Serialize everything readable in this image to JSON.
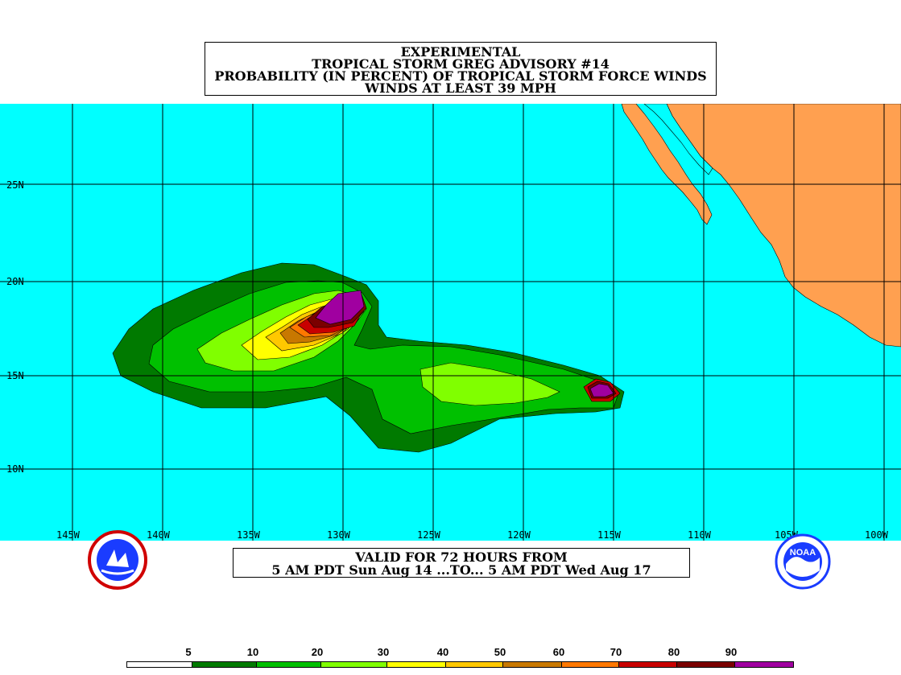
{
  "title": {
    "line1": "EXPERIMENTAL",
    "line2": "TROPICAL STORM GREG ADVISORY #14",
    "line3": "PROBABILITY (IN PERCENT) OF TROPICAL STORM FORCE WINDS",
    "line4": "WINDS AT LEAST 39 MPH"
  },
  "valid": {
    "line1": "VALID FOR 72 HOURS FROM",
    "line2": "5 AM PDT Sun Aug 14 ...TO... 5 AM PDT Wed Aug 17"
  },
  "lat_labels": [
    "25N",
    "20N",
    "15N",
    "10N"
  ],
  "lon_labels": [
    "145W",
    "140W",
    "135W",
    "130W",
    "125W",
    "120W",
    "115W",
    "110W",
    "105W",
    "100W"
  ],
  "legend": {
    "labels": [
      "5",
      "10",
      "20",
      "30",
      "40",
      "50",
      "60",
      "70",
      "80",
      "90"
    ],
    "colors": [
      "#ffffff",
      "#007a00",
      "#00c000",
      "#80ff00",
      "#ffff00",
      "#ffc800",
      "#c87800",
      "#ff7800",
      "#c80000",
      "#7a0000",
      "#a000a0"
    ]
  },
  "colors": {
    "ocean": "#00ffff",
    "land": "#ffa050",
    "grid": "#000000"
  },
  "logos": {
    "left": "nws-logo-icon",
    "right": "noaa-logo-icon"
  },
  "noaa_text": "NOAA"
}
